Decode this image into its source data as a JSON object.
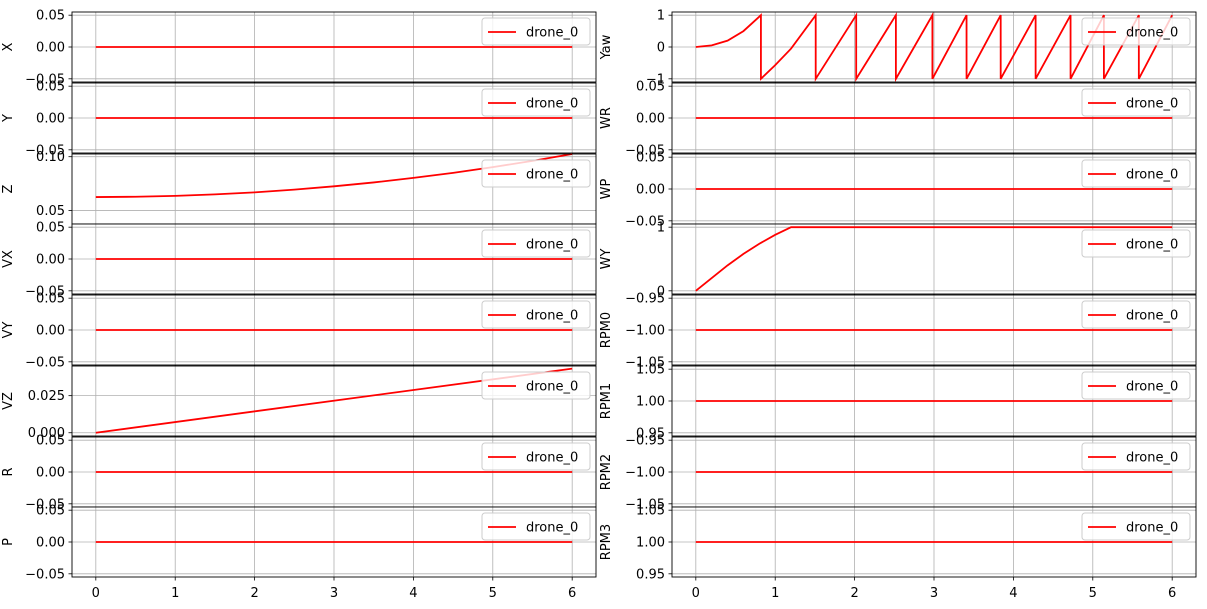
{
  "figure": {
    "legend_label": "drone_0",
    "line_color": "#ff0000",
    "grid_color": "#b0b0b0",
    "x_ticks": [
      0,
      1,
      2,
      3,
      4,
      5,
      6
    ],
    "x_range": [
      -0.3,
      6.3
    ]
  },
  "chart_data": [
    {
      "type": "line",
      "ylabel": "X",
      "ylim": [
        -0.055,
        0.055
      ],
      "yticks": [
        0.05,
        0.0,
        -0.05
      ],
      "ytick_labels": [
        "0.05",
        "0.00",
        "−0.05"
      ],
      "series": [
        {
          "name": "drone_0",
          "x": [
            0,
            6
          ],
          "y": [
            0,
            0
          ]
        }
      ]
    },
    {
      "type": "line",
      "ylabel": "Y",
      "ylim": [
        -0.055,
        0.055
      ],
      "yticks": [
        0.05,
        0.0,
        -0.05
      ],
      "ytick_labels": [
        "0.05",
        "0.00",
        "−0.05"
      ],
      "series": [
        {
          "name": "drone_0",
          "x": [
            0,
            6
          ],
          "y": [
            0,
            0
          ]
        }
      ]
    },
    {
      "type": "line",
      "ylabel": "Z",
      "ylim": [
        0.0375,
        0.1025
      ],
      "yticks": [
        0.1,
        0.05
      ],
      "ytick_labels": [
        "0.10",
        "0.05"
      ],
      "series": [
        {
          "name": "drone_0",
          "x": [
            0,
            0.5,
            1,
            1.5,
            2,
            2.5,
            3,
            3.5,
            4,
            4.5,
            5,
            5.5,
            6
          ],
          "y": [
            0.0625,
            0.0628,
            0.0636,
            0.065,
            0.0669,
            0.0694,
            0.0725,
            0.0761,
            0.0803,
            0.085,
            0.0903,
            0.0961,
            0.1025
          ]
        }
      ]
    },
    {
      "type": "line",
      "ylabel": "VX",
      "ylim": [
        -0.055,
        0.055
      ],
      "yticks": [
        0.05,
        0.0,
        -0.05
      ],
      "ytick_labels": [
        "0.05",
        "0.00",
        "−0.05"
      ],
      "series": [
        {
          "name": "drone_0",
          "x": [
            0,
            6
          ],
          "y": [
            0,
            0
          ]
        }
      ]
    },
    {
      "type": "line",
      "ylabel": "VY",
      "ylim": [
        -0.055,
        0.055
      ],
      "yticks": [
        0.05,
        0.0,
        -0.05
      ],
      "ytick_labels": [
        "0.05",
        "0.00",
        "−0.05"
      ],
      "series": [
        {
          "name": "drone_0",
          "x": [
            0,
            6
          ],
          "y": [
            0,
            0
          ]
        }
      ]
    },
    {
      "type": "line",
      "ylabel": "VZ",
      "ylim": [
        -0.0022,
        0.045
      ],
      "yticks": [
        0.025,
        0.0
      ],
      "ytick_labels": [
        "0.025",
        "0.000"
      ],
      "series": [
        {
          "name": "drone_0",
          "x": [
            0,
            6
          ],
          "y": [
            0,
            0.0432
          ]
        }
      ]
    },
    {
      "type": "line",
      "ylabel": "R",
      "ylim": [
        -0.055,
        0.055
      ],
      "yticks": [
        0.05,
        0.0,
        -0.05
      ],
      "ytick_labels": [
        "0.05",
        "0.00",
        "−0.05"
      ],
      "series": [
        {
          "name": "drone_0",
          "x": [
            0,
            6
          ],
          "y": [
            0,
            0
          ]
        }
      ]
    },
    {
      "type": "line",
      "ylabel": "P",
      "ylim": [
        -0.055,
        0.055
      ],
      "yticks": [
        0.05,
        0.0,
        -0.05
      ],
      "ytick_labels": [
        "0.05",
        "0.00",
        "−0.05"
      ],
      "series": [
        {
          "name": "drone_0",
          "x": [
            0,
            6
          ],
          "y": [
            0,
            0
          ]
        }
      ]
    },
    {
      "type": "line",
      "ylabel": "Yaw",
      "ylim": [
        -1.1,
        1.1
      ],
      "yticks": [
        1,
        0,
        -1
      ],
      "ytick_labels": [
        "1",
        "0",
        "−1"
      ],
      "series": [
        {
          "name": "drone_0",
          "x": [
            0,
            0.2,
            0.4,
            0.6,
            0.82,
            0.82,
            1.0,
            1.2,
            1.51,
            1.51,
            2.02,
            2.02,
            2.52,
            2.52,
            2.98,
            2.98,
            3.41,
            3.41,
            3.84,
            3.84,
            4.28,
            4.28,
            4.72,
            4.72,
            5.14,
            5.14,
            5.58,
            5.58,
            6.0
          ],
          "y": [
            0,
            0.05,
            0.2,
            0.5,
            1,
            -1,
            -0.57,
            -0.05,
            1,
            -1,
            1,
            -1,
            1,
            -1,
            1,
            -1,
            1,
            -1,
            1,
            -1,
            1,
            -1,
            1,
            -1,
            1,
            -1,
            1,
            -1,
            1
          ]
        }
      ]
    },
    {
      "type": "line",
      "ylabel": "WR",
      "ylim": [
        -0.055,
        0.055
      ],
      "yticks": [
        0.05,
        0.0,
        -0.05
      ],
      "ytick_labels": [
        "0.05",
        "0.00",
        "−0.05"
      ],
      "series": [
        {
          "name": "drone_0",
          "x": [
            0,
            6
          ],
          "y": [
            0,
            0
          ]
        }
      ]
    },
    {
      "type": "line",
      "ylabel": "WP",
      "ylim": [
        -0.055,
        0.055
      ],
      "yticks": [
        0.05,
        0.0,
        -0.05
      ],
      "ytick_labels": [
        "0.05",
        "0.00",
        "−0.05"
      ],
      "series": [
        {
          "name": "drone_0",
          "x": [
            0,
            6
          ],
          "y": [
            0,
            0
          ]
        }
      ]
    },
    {
      "type": "line",
      "ylabel": "WY",
      "ylim": [
        -0.05,
        1.05
      ],
      "yticks": [
        1,
        0
      ],
      "ytick_labels": [
        "1",
        "0"
      ],
      "series": [
        {
          "name": "drone_0",
          "x": [
            0,
            0.2,
            0.4,
            0.6,
            0.8,
            1.0,
            1.2,
            6.0
          ],
          "y": [
            0,
            0.2,
            0.4,
            0.58,
            0.74,
            0.88,
            1,
            1
          ]
        }
      ]
    },
    {
      "type": "line",
      "ylabel": "RPM0",
      "ylim": [
        -1.055,
        -0.945
      ],
      "yticks": [
        -0.95,
        -1.0,
        -1.05
      ],
      "ytick_labels": [
        "−0.95",
        "−1.00",
        "−1.05"
      ],
      "series": [
        {
          "name": "drone_0",
          "x": [
            0,
            6
          ],
          "y": [
            -1,
            -1
          ]
        }
      ]
    },
    {
      "type": "line",
      "ylabel": "RPM1",
      "ylim": [
        0.945,
        1.055
      ],
      "yticks": [
        1.05,
        1.0,
        0.95
      ],
      "ytick_labels": [
        "1.05",
        "1.00",
        "0.95"
      ],
      "series": [
        {
          "name": "drone_0",
          "x": [
            0,
            6
          ],
          "y": [
            1,
            1
          ]
        }
      ]
    },
    {
      "type": "line",
      "ylabel": "RPM2",
      "ylim": [
        -1.055,
        -0.945
      ],
      "yticks": [
        -0.95,
        -1.0,
        -1.05
      ],
      "ytick_labels": [
        "−0.95",
        "−1.00",
        "−1.05"
      ],
      "series": [
        {
          "name": "drone_0",
          "x": [
            0,
            6
          ],
          "y": [
            -1,
            -1
          ]
        }
      ]
    },
    {
      "type": "line",
      "ylabel": "RPM3",
      "ylim": [
        0.945,
        1.055
      ],
      "yticks": [
        1.05,
        1.0,
        0.95
      ],
      "ytick_labels": [
        "1.05",
        "1.00",
        "0.95"
      ],
      "series": [
        {
          "name": "drone_0",
          "x": [
            0,
            6
          ],
          "y": [
            1,
            1
          ]
        }
      ]
    }
  ]
}
